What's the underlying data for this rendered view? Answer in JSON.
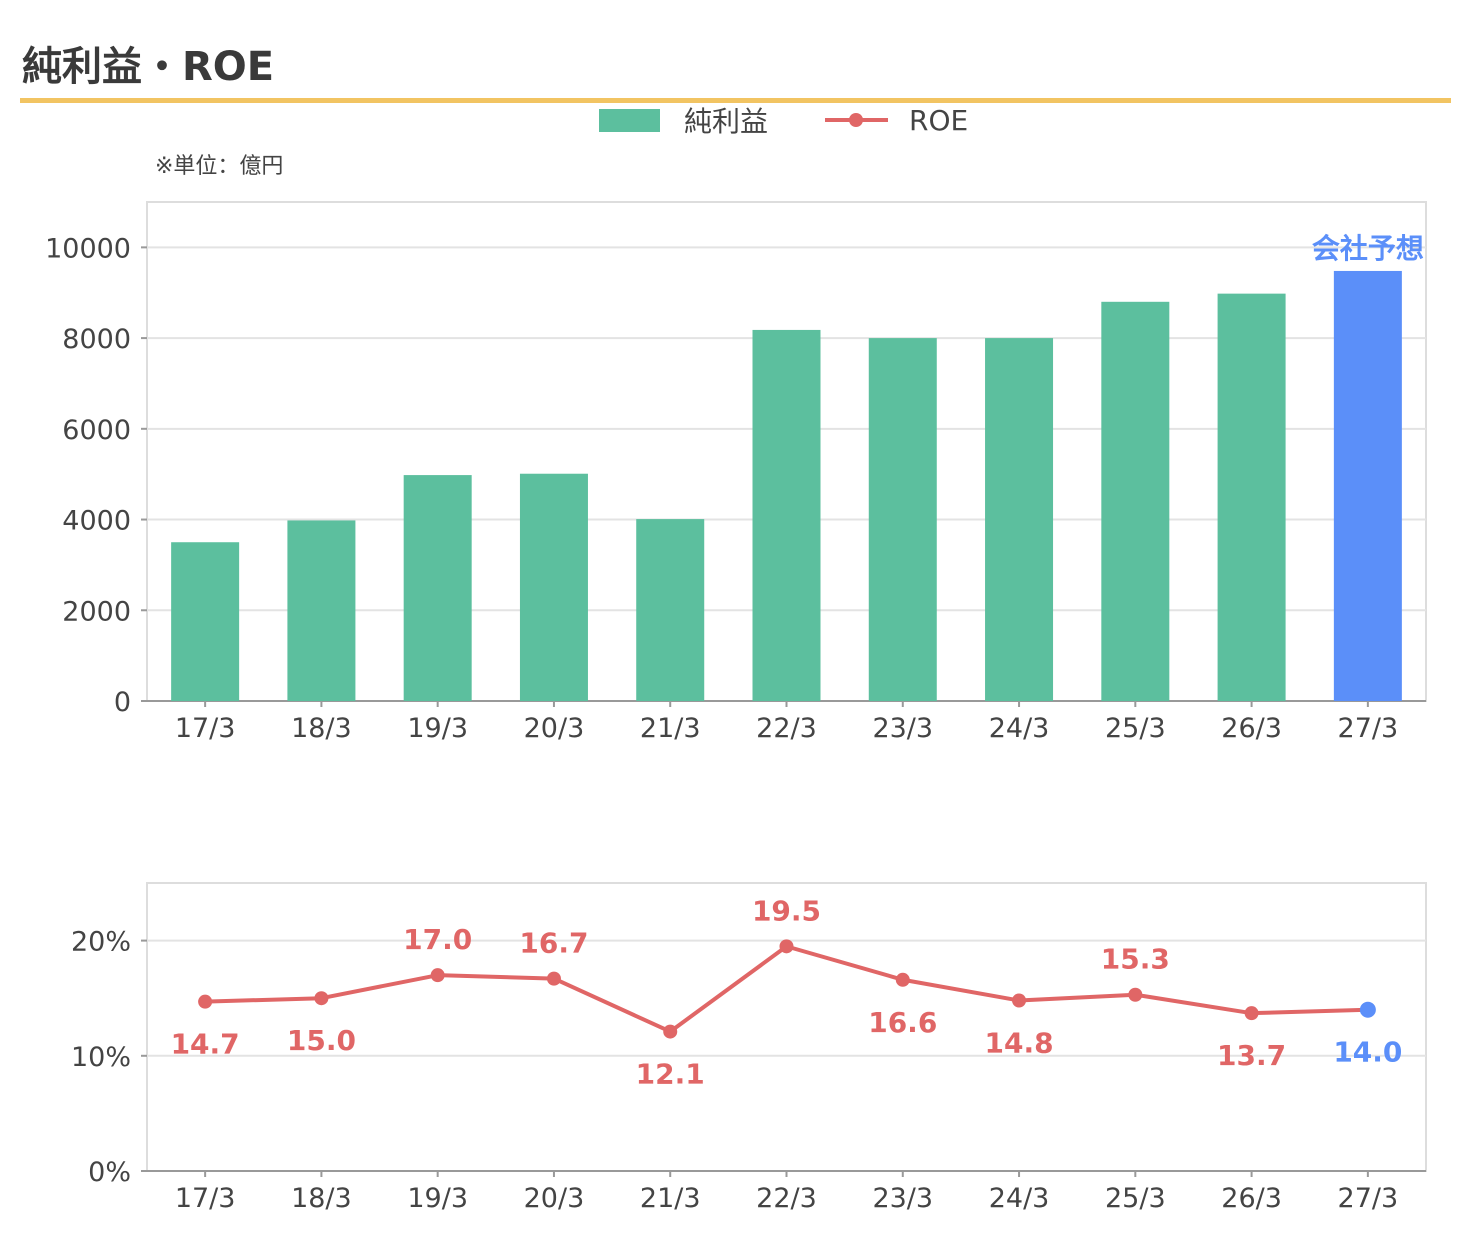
{
  "title": "純利益・ROE",
  "unit_note": "※単位：億円",
  "legend": [
    {
      "label": "純利益",
      "kind": "bar",
      "color": "#5cbf9e"
    },
    {
      "label": "ROE",
      "kind": "line",
      "color": "#e06666"
    }
  ],
  "colors": {
    "bar": "#5cbf9e",
    "forecast": "#5b8ff9",
    "line": "#e06666",
    "grid": "#e3e3e3",
    "border": "#dddddd",
    "title_rule": "#f2c462"
  },
  "chart_data": [
    {
      "type": "bar",
      "categories": [
        "17/3",
        "18/3",
        "19/3",
        "20/3",
        "21/3",
        "22/3",
        "23/3",
        "24/3",
        "25/3",
        "26/3",
        "27/3"
      ],
      "series": [
        {
          "name": "純利益",
          "values": [
            3500,
            3980,
            4980,
            5010,
            4010,
            8180,
            8000,
            8000,
            8800,
            8980,
            9480
          ]
        }
      ],
      "ylim": [
        0,
        11000
      ],
      "yticks": [
        0,
        2000,
        4000,
        6000,
        8000,
        10000
      ],
      "forecast_index": 10,
      "forecast_label": "会社予想",
      "grid": true
    },
    {
      "type": "line",
      "categories": [
        "17/3",
        "18/3",
        "19/3",
        "20/3",
        "21/3",
        "22/3",
        "23/3",
        "24/3",
        "25/3",
        "26/3",
        "27/3"
      ],
      "series": [
        {
          "name": "ROE",
          "values": [
            14.7,
            15.0,
            17.0,
            16.7,
            12.1,
            19.5,
            16.6,
            14.8,
            15.3,
            13.7,
            14.0
          ],
          "labels": [
            "14.7",
            "15.0",
            "17.0",
            "16.7",
            "12.1",
            "19.5",
            "16.6",
            "14.8",
            "15.3",
            "13.7",
            "14.0"
          ]
        }
      ],
      "ylim": [
        0,
        25
      ],
      "yticks": [
        0,
        10,
        20
      ],
      "ytick_labels": [
        "0%",
        "10%",
        "20%"
      ],
      "forecast_index": 10,
      "grid": true
    }
  ]
}
